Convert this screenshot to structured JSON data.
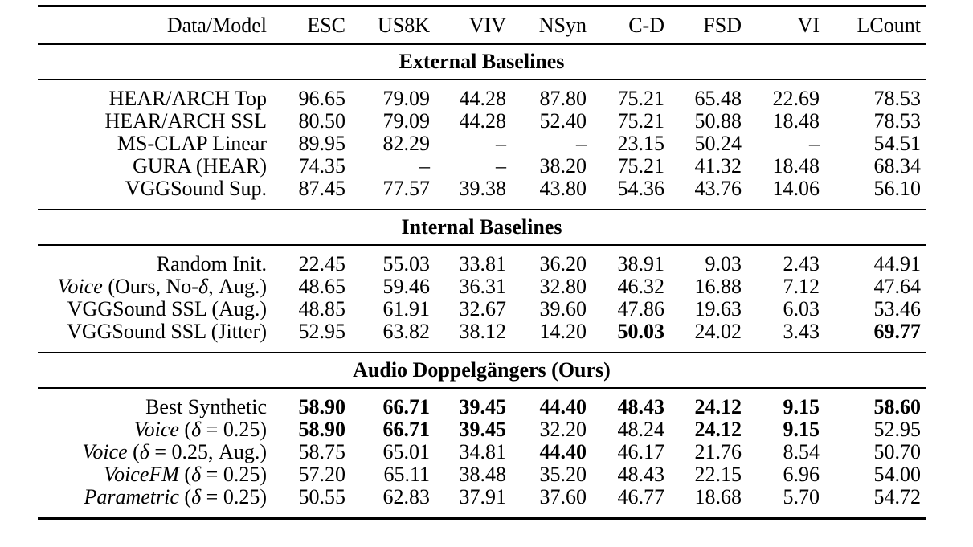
{
  "page": {
    "background": "#ffffff",
    "text_color": "#000000"
  },
  "table": {
    "columns": [
      "Data/Model",
      "ESC",
      "US8K",
      "VIV",
      "NSyn",
      "C-D",
      "FSD",
      "VI",
      "LCount"
    ],
    "missing_value_symbol": "–",
    "sections": [
      {
        "title": "External Baselines",
        "rows": [
          {
            "label": "HEAR/ARCH Top",
            "values": [
              "96.65",
              "79.09",
              "44.28",
              "87.80",
              "75.21",
              "65.48",
              "22.69",
              "78.53"
            ],
            "bold": []
          },
          {
            "label": "HEAR/ARCH SSL",
            "values": [
              "80.50",
              "79.09",
              "44.28",
              "52.40",
              "75.21",
              "50.88",
              "18.48",
              "78.53"
            ],
            "bold": []
          },
          {
            "label": "MS-CLAP Linear",
            "values": [
              "89.95",
              "82.29",
              "–",
              "–",
              "23.15",
              "50.24",
              "–",
              "54.51"
            ],
            "bold": []
          },
          {
            "label": "GURA (HEAR)",
            "values": [
              "74.35",
              "–",
              "–",
              "38.20",
              "75.21",
              "41.32",
              "18.48",
              "68.34"
            ],
            "bold": []
          },
          {
            "label": "VGGSound Sup.",
            "values": [
              "87.45",
              "77.57",
              "39.38",
              "43.80",
              "54.36",
              "43.76",
              "14.06",
              "56.10"
            ],
            "bold": []
          }
        ]
      },
      {
        "title": "Internal Baselines",
        "rows": [
          {
            "label": "Random Init.",
            "values": [
              "22.45",
              "55.03",
              "33.81",
              "36.20",
              "38.91",
              "9.03",
              "2.43",
              "44.91"
            ],
            "bold": []
          },
          {
            "label": "*Voice* (Ours, No-*δ*, Aug.)",
            "values": [
              "48.65",
              "59.46",
              "36.31",
              "32.80",
              "46.32",
              "16.88",
              "7.12",
              "47.64"
            ],
            "bold": []
          },
          {
            "label": "VGGSound SSL (Aug.)",
            "values": [
              "48.85",
              "61.91",
              "32.67",
              "39.60",
              "47.86",
              "19.63",
              "6.03",
              "53.46"
            ],
            "bold": []
          },
          {
            "label": "VGGSound SSL (Jitter)",
            "values": [
              "52.95",
              "63.82",
              "38.12",
              "14.20",
              "50.03",
              "24.02",
              "3.43",
              "69.77"
            ],
            "bold": [
              4,
              7
            ]
          }
        ]
      },
      {
        "title": "Audio Doppelgängers (Ours)",
        "rows": [
          {
            "label": "Best Synthetic",
            "values": [
              "58.90",
              "66.71",
              "39.45",
              "44.40",
              "48.43",
              "24.12",
              "9.15",
              "58.60"
            ],
            "bold": [
              0,
              1,
              2,
              3,
              4,
              5,
              6,
              7
            ]
          },
          {
            "label": "*Voice* (*δ* = 0.25)",
            "values": [
              "58.90",
              "66.71",
              "39.45",
              "32.20",
              "48.24",
              "24.12",
              "9.15",
              "52.95"
            ],
            "bold": [
              0,
              1,
              2,
              5,
              6
            ]
          },
          {
            "label": "*Voice* (*δ* = 0.25, Aug.)",
            "values": [
              "58.75",
              "65.01",
              "34.81",
              "44.40",
              "46.17",
              "21.76",
              "8.54",
              "50.70"
            ],
            "bold": [
              3
            ]
          },
          {
            "label": "*VoiceFM* (*δ* = 0.25)",
            "values": [
              "57.20",
              "65.11",
              "38.48",
              "35.20",
              "48.43",
              "22.15",
              "6.96",
              "54.00"
            ],
            "bold": []
          },
          {
            "label": "*Parametric* (*δ* = 0.25)",
            "values": [
              "50.55",
              "62.83",
              "37.91",
              "37.60",
              "46.77",
              "18.68",
              "5.70",
              "54.72"
            ],
            "bold": []
          }
        ]
      }
    ]
  }
}
